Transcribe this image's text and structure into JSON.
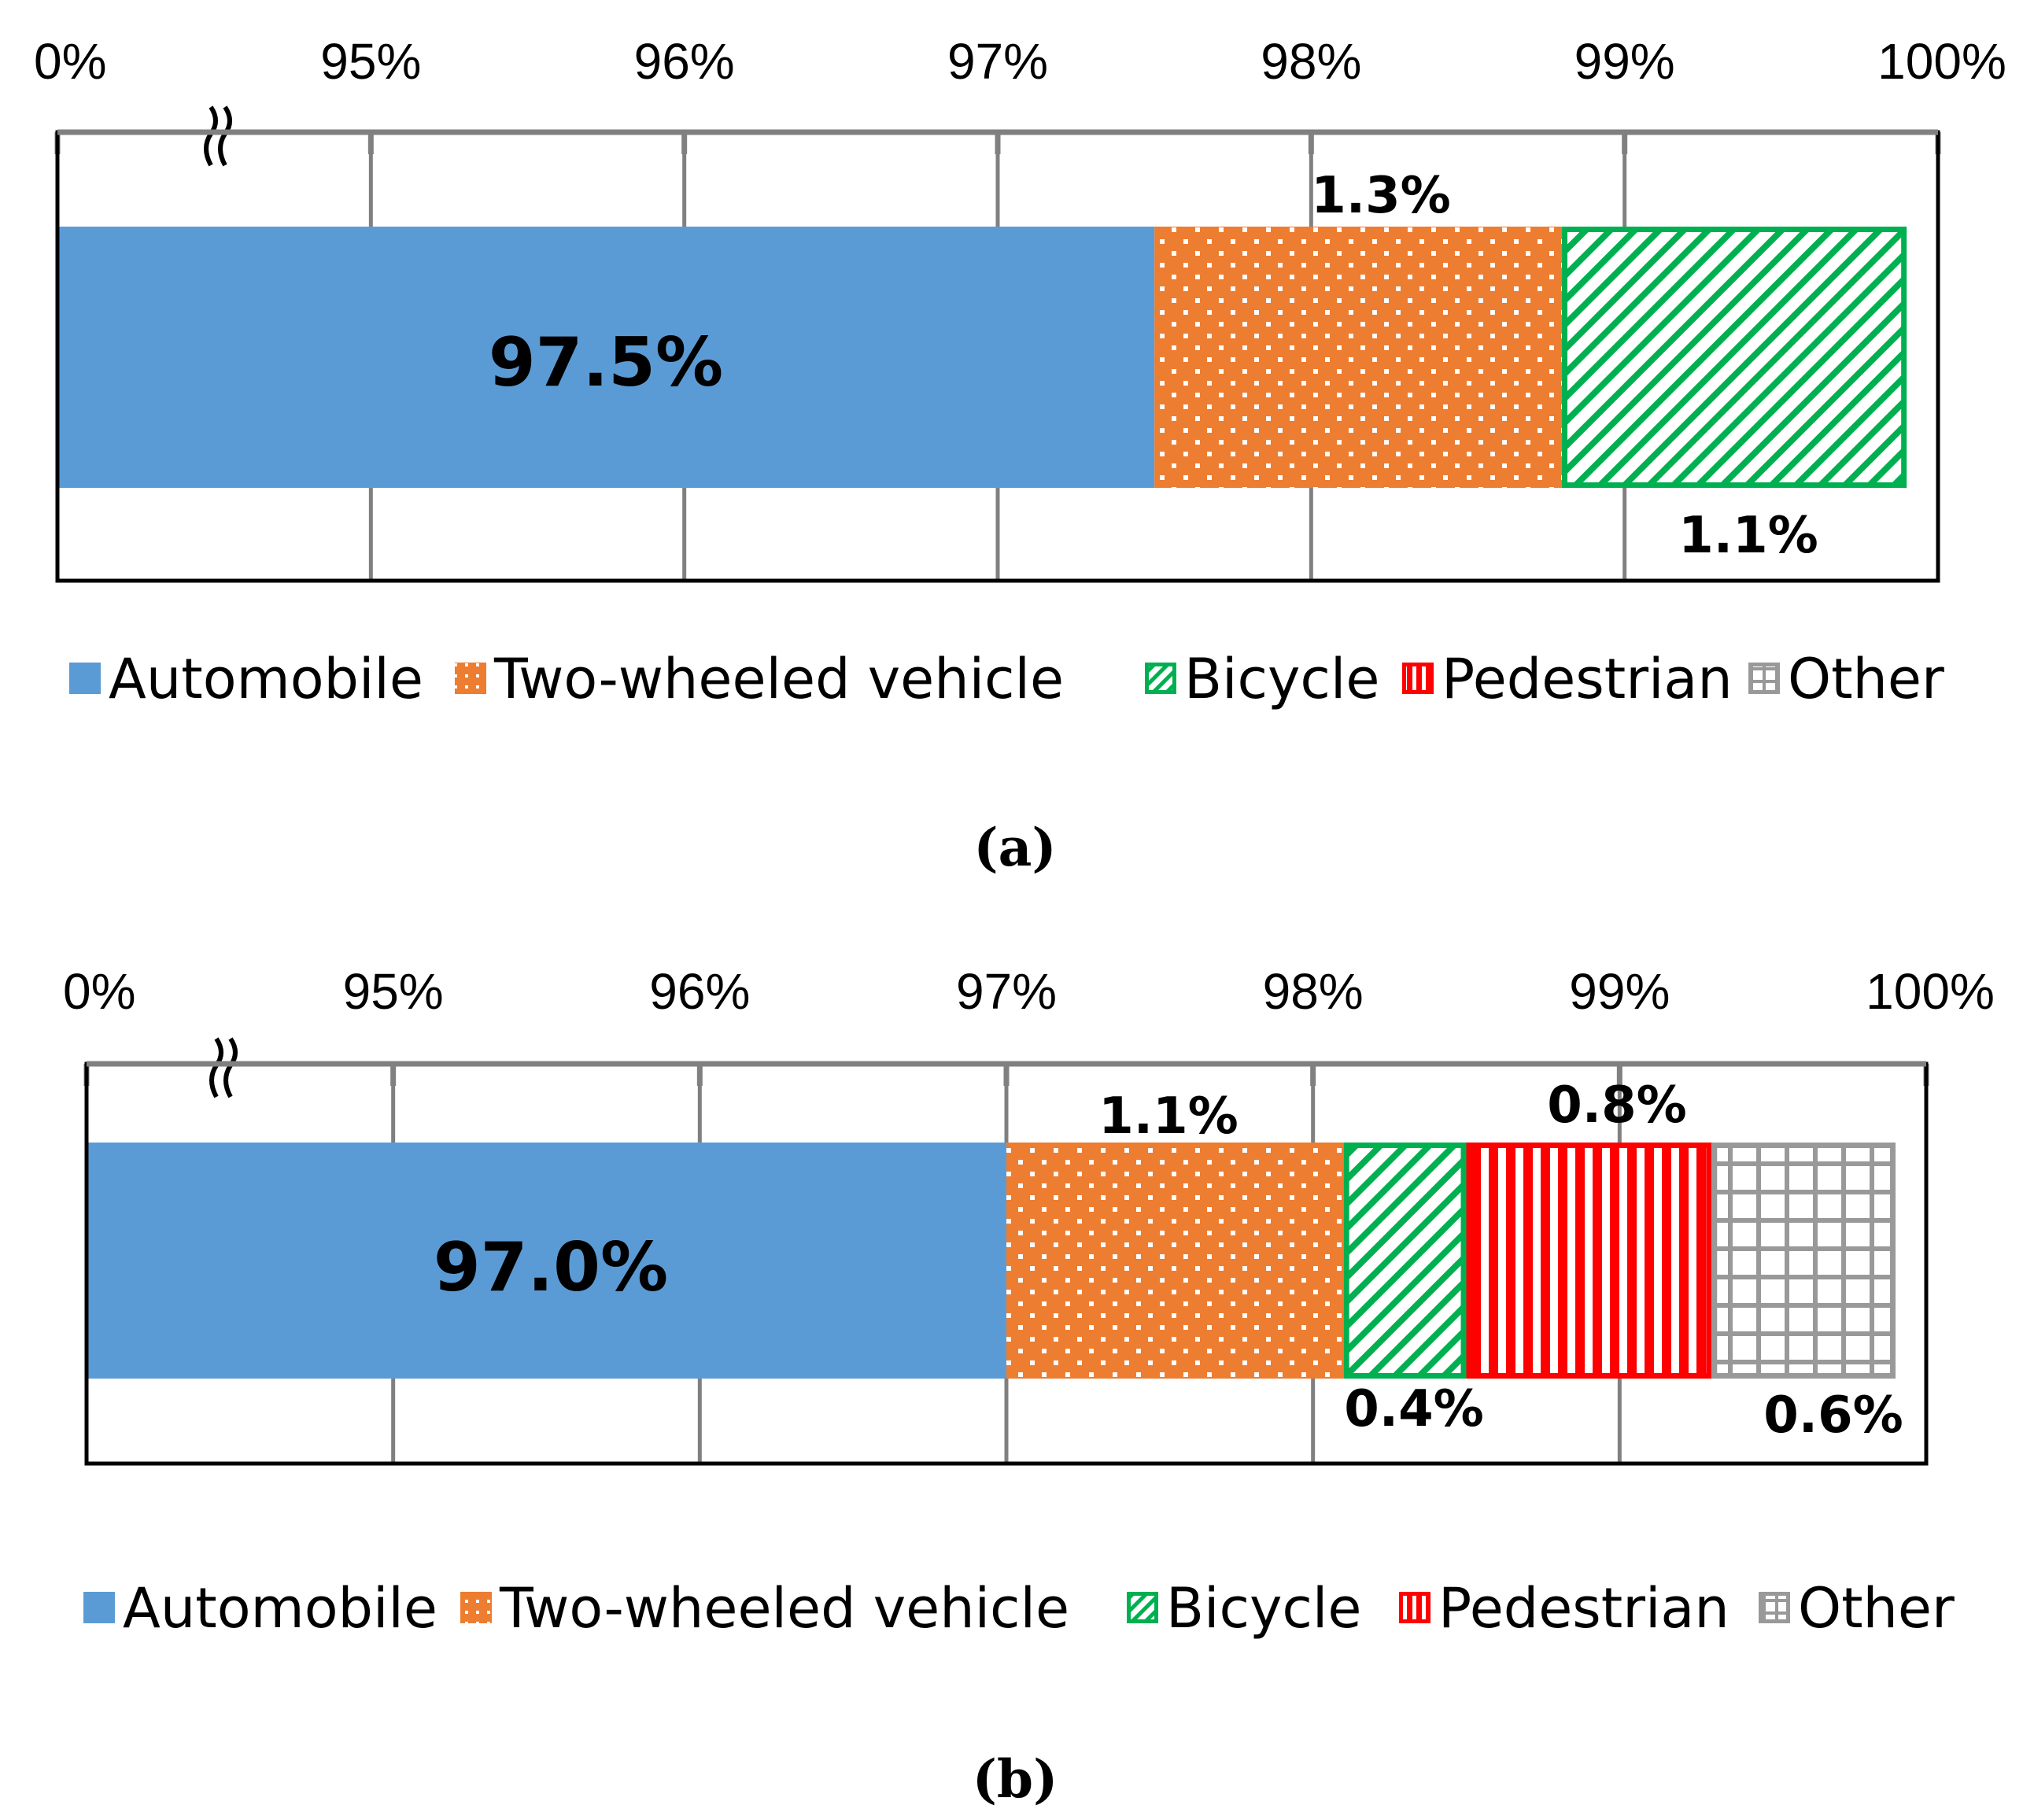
{
  "colors": {
    "automobile": "#5B9BD5",
    "two_wheeled": "#ED7D31",
    "bicycle": "#00B050",
    "pedestrian": "#FF0000",
    "other": "#999999",
    "grid": "#808080"
  },
  "chart_data": [
    {
      "type": "bar",
      "orientation": "horizontal-stacked",
      "caption": "(a)",
      "axis_break": true,
      "ticks": [
        "0%",
        "95%",
        "96%",
        "97%",
        "98%",
        "99%",
        "100%"
      ],
      "xlim": [
        94,
        100
      ],
      "series": [
        {
          "name": "Automobile",
          "value": 97.5,
          "label": "97.5%"
        },
        {
          "name": "Two-wheeled vehicle",
          "value": 1.3,
          "label": "1.3%"
        },
        {
          "name": "Bicycle",
          "value": 1.1,
          "label": "1.1%"
        },
        {
          "name": "Pedestrian",
          "value": 0.0,
          "label": ""
        },
        {
          "name": "Other",
          "value": 0.0,
          "label": ""
        }
      ],
      "legend": [
        "Automobile",
        "Two-wheeled vehicle",
        "Bicycle",
        "Pedestrian",
        "Other"
      ],
      "legend_position": "bottom"
    },
    {
      "type": "bar",
      "orientation": "horizontal-stacked",
      "caption": "(b)",
      "axis_break": true,
      "ticks": [
        "0%",
        "95%",
        "96%",
        "97%",
        "98%",
        "99%",
        "100%"
      ],
      "xlim": [
        94,
        100
      ],
      "series": [
        {
          "name": "Automobile",
          "value": 97.0,
          "label": "97.0%"
        },
        {
          "name": "Two-wheeled vehicle",
          "value": 1.1,
          "label": "1.1%"
        },
        {
          "name": "Bicycle",
          "value": 0.4,
          "label": "0.4%"
        },
        {
          "name": "Pedestrian",
          "value": 0.8,
          "label": "0.8%"
        },
        {
          "name": "Other",
          "value": 0.6,
          "label": "0.6%"
        }
      ],
      "legend": [
        "Automobile",
        "Two-wheeled vehicle",
        "Bicycle",
        "Pedestrian",
        "Other"
      ],
      "legend_position": "bottom"
    }
  ]
}
